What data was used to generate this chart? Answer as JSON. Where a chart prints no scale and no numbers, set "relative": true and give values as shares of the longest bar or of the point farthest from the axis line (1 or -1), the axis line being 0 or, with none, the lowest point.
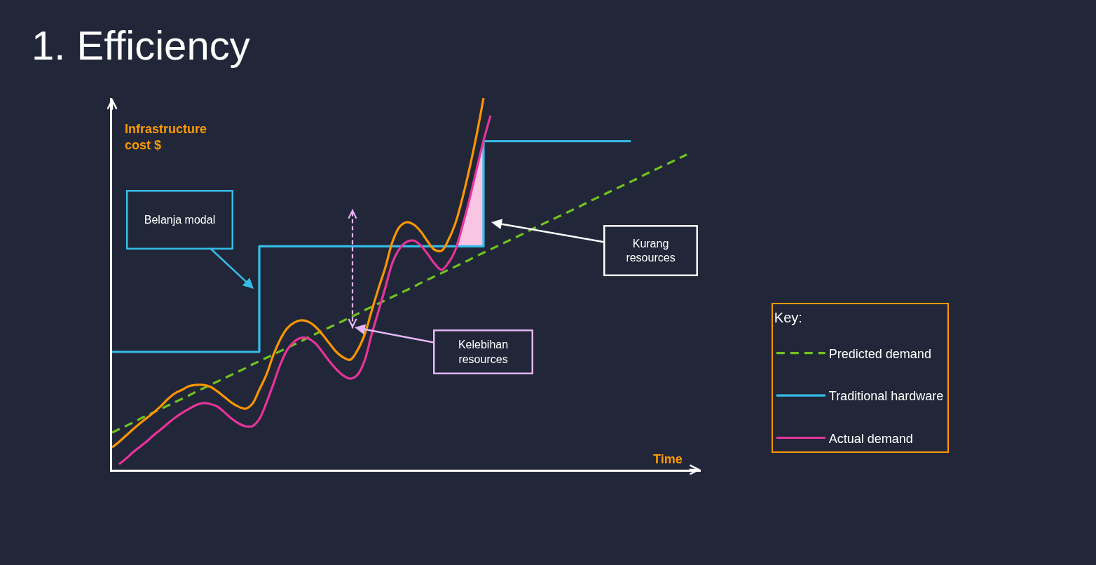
{
  "chart_data": {
    "type": "line",
    "title": "1. Efficiency",
    "xlabel": "Time",
    "ylabel": "Infrastructure cost $",
    "legend_title": "Key:",
    "legend": "right",
    "relative": true,
    "annotations": [
      "Belanja modal",
      "Kurang resources",
      "Kelebihan resources"
    ],
    "categories": [
      null,
      null,
      null,
      null,
      null,
      null,
      null,
      null,
      null,
      null,
      null,
      null,
      null,
      null,
      null,
      null,
      null,
      null,
      null,
      null,
      null,
      null,
      null,
      null,
      null,
      null,
      null,
      null,
      null,
      null,
      null,
      null,
      null,
      null,
      null,
      null,
      null,
      null,
      null,
      null,
      null,
      null,
      null,
      null,
      null,
      null,
      null,
      null,
      null,
      null,
      null,
      null,
      null,
      null,
      null,
      null,
      null,
      null,
      null,
      null,
      null,
      null,
      null,
      null,
      null,
      null,
      null,
      null,
      null,
      null,
      null,
      null,
      null,
      null,
      null,
      null,
      null,
      null,
      null,
      null,
      null,
      null,
      null,
      null,
      null
    ],
    "series": [
      {
        "name": "Predicted demand",
        "line_style": "dashed",
        "color": "#72c21f",
        "values": [
          0.1,
          0.109,
          0.118,
          0.127,
          0.137,
          0.146,
          0.155,
          0.164,
          0.173,
          0.182,
          0.191,
          0.2,
          0.21,
          0.219,
          0.228,
          0.237,
          0.246,
          0.255,
          0.264,
          0.273,
          0.283,
          0.292,
          0.301,
          0.31,
          0.319,
          0.328,
          0.337,
          0.346,
          0.356,
          0.365,
          0.374,
          0.383,
          0.392,
          0.401,
          0.41,
          0.419,
          0.429,
          0.438,
          0.447,
          0.456,
          0.465,
          0.474,
          0.483,
          0.492,
          0.502,
          0.511,
          0.52,
          0.529,
          0.538,
          0.547,
          0.556,
          0.565,
          0.575,
          0.584,
          0.593,
          0.602,
          0.611,
          0.62,
          0.629,
          0.638,
          0.648,
          0.657,
          0.666,
          0.675,
          0.684,
          0.693,
          0.702,
          0.711,
          0.721,
          0.73,
          0.739,
          0.748,
          0.757,
          0.766,
          0.775,
          0.784,
          0.794,
          0.803,
          0.812,
          0.821,
          0.83,
          0.839,
          0.848,
          null,
          null
        ]
      },
      {
        "name": "Traditional hardware",
        "type": "step",
        "color": "#35bde8",
        "values": [
          0.317,
          0.317,
          0.317,
          0.317,
          0.317,
          0.317,
          0.317,
          0.317,
          0.317,
          0.317,
          0.317,
          0.317,
          0.317,
          0.317,
          0.317,
          0.317,
          0.317,
          0.317,
          0.317,
          0.317,
          0.317,
          0.601,
          0.601,
          0.601,
          0.601,
          0.601,
          0.601,
          0.601,
          0.601,
          0.601,
          0.601,
          0.601,
          0.601,
          0.601,
          0.601,
          0.601,
          0.601,
          0.601,
          0.601,
          0.601,
          0.601,
          0.601,
          0.601,
          0.601,
          0.601,
          0.601,
          0.601,
          0.601,
          0.601,
          0.601,
          0.601,
          0.601,
          0.601,
          0.884,
          0.884,
          0.884,
          0.884,
          0.884,
          0.884,
          0.884,
          0.884,
          0.884,
          0.884,
          0.884,
          0.884,
          0.884,
          0.884,
          0.884,
          0.884,
          0.884,
          0.884,
          0.884,
          0.884,
          0.884,
          0.884,
          null,
          null,
          null,
          null,
          null,
          null,
          null,
          null,
          null,
          null
        ]
      },
      {
        "name": "Actual demand",
        "color": "#e8339a",
        "values": [
          null,
          0.015,
          0.03,
          0.047,
          0.062,
          0.077,
          0.094,
          0.109,
          0.125,
          0.14,
          0.153,
          0.164,
          0.174,
          0.179,
          0.177,
          0.17,
          0.155,
          0.138,
          0.125,
          0.117,
          0.117,
          0.136,
          0.179,
          0.23,
          0.283,
          0.323,
          0.345,
          0.355,
          0.353,
          0.34,
          0.317,
          0.292,
          0.27,
          0.253,
          0.245,
          0.255,
          0.292,
          0.362,
          0.426,
          0.491,
          0.557,
          0.594,
          0.613,
          0.617,
          0.604,
          0.581,
          0.555,
          0.538,
          0.557,
          0.592,
          0.657,
          0.728,
          0.808,
          0.885,
          0.953,
          null,
          null,
          null,
          null,
          null,
          null,
          null,
          null,
          null,
          null,
          null,
          null,
          null,
          null,
          null,
          null,
          null,
          null,
          null,
          null,
          null,
          null,
          null,
          null,
          null,
          null,
          null,
          null,
          null,
          null
        ],
        "lower": [
          null,
          null,
          null,
          null,
          null,
          null,
          null,
          null,
          null,
          null,
          null,
          null,
          null,
          null,
          null,
          null,
          null,
          null,
          null,
          null,
          null,
          null,
          null,
          null,
          null,
          null,
          null,
          null,
          null,
          null,
          null,
          null,
          null,
          null,
          null,
          null,
          null,
          null,
          null,
          null,
          null,
          null,
          null,
          null,
          null,
          null,
          null,
          null,
          null,
          0.601,
          0.601,
          0.601,
          0.601,
          0.601,
          null,
          null,
          null,
          null,
          null,
          null,
          null,
          null,
          null,
          null,
          null,
          null,
          null,
          null,
          null,
          null,
          null,
          null,
          null,
          null,
          null,
          null,
          null,
          null,
          null,
          null,
          null,
          null,
          null,
          null,
          null
        ],
        "upper": [
          null,
          null,
          null,
          null,
          null,
          null,
          null,
          null,
          null,
          null,
          null,
          null,
          null,
          null,
          null,
          null,
          null,
          null,
          null,
          null,
          null,
          null,
          null,
          null,
          null,
          null,
          null,
          null,
          null,
          null,
          null,
          null,
          null,
          null,
          null,
          null,
          null,
          null,
          null,
          null,
          null,
          null,
          null,
          null,
          null,
          null,
          null,
          null,
          null,
          0.601,
          0.657,
          0.728,
          0.808,
          0.885,
          null,
          null,
          null,
          null,
          null,
          null,
          null,
          null,
          null,
          null,
          null,
          null,
          null,
          null,
          null,
          null,
          null,
          null,
          null,
          null,
          null,
          null,
          null,
          null,
          null,
          null,
          null,
          null,
          null,
          null,
          null
        ]
      },
      {
        "color": "#ff9500",
        "values": [
          0.06,
          0.075,
          0.092,
          0.109,
          0.125,
          0.14,
          0.155,
          0.172,
          0.191,
          0.206,
          0.215,
          0.225,
          0.228,
          0.228,
          0.223,
          0.211,
          0.196,
          0.181,
          0.17,
          0.164,
          0.177,
          0.215,
          0.255,
          0.308,
          0.351,
          0.381,
          0.396,
          0.402,
          0.398,
          0.385,
          0.364,
          0.34,
          0.317,
          0.302,
          0.296,
          0.321,
          0.362,
          0.425,
          0.487,
          0.545,
          0.613,
          0.653,
          0.666,
          0.66,
          0.642,
          0.615,
          0.592,
          0.589,
          0.619,
          0.664,
          0.732,
          0.811,
          0.9,
          1.0,
          null,
          null,
          null,
          null,
          null,
          null,
          null,
          null,
          null,
          null,
          null,
          null,
          null,
          null,
          null,
          null,
          null,
          null,
          null,
          null,
          null,
          null,
          null,
          null,
          null,
          null,
          null,
          null,
          null,
          null,
          null
        ]
      }
    ]
  }
}
